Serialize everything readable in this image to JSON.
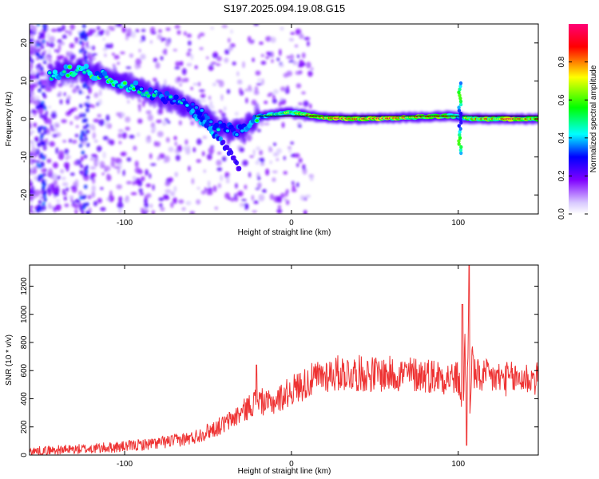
{
  "figure": {
    "title": "S197.2025.094.19.08.G15"
  },
  "chart_data": [
    {
      "type": "heatmap",
      "name": "spectrogram",
      "xlabel": "Height of straight line (km)",
      "ylabel": "Frequency (Hz)",
      "xlim": [
        -157,
        148
      ],
      "ylim": [
        -25,
        25
      ],
      "xticks": [
        -100,
        0,
        100
      ],
      "yticks": [
        -20,
        -10,
        0,
        10,
        20
      ],
      "grid": false,
      "colorbar": {
        "label": "Normalized spectral amplitude",
        "range": [
          0,
          1
        ],
        "ticks": [
          0.0,
          0.2,
          0.4,
          0.6,
          0.8
        ],
        "colormap": [
          "#ffffff",
          "#7f00ff",
          "#0000ff",
          "#00ffff",
          "#00ff00",
          "#ffff00",
          "#ff0000",
          "#ff00aa"
        ]
      },
      "ridge": [
        {
          "x": -145,
          "y": 11.5,
          "a": 0.55
        },
        {
          "x": -135,
          "y": 12.5,
          "a": 0.6
        },
        {
          "x": -125,
          "y": 13.0,
          "a": 0.65
        },
        {
          "x": -115,
          "y": 11.5,
          "a": 0.6
        },
        {
          "x": -105,
          "y": 10.0,
          "a": 0.6
        },
        {
          "x": -95,
          "y": 8.5,
          "a": 0.55
        },
        {
          "x": -85,
          "y": 7.0,
          "a": 0.5
        },
        {
          "x": -75,
          "y": 5.5,
          "a": 0.5
        },
        {
          "x": -65,
          "y": 4.0,
          "a": 0.45
        },
        {
          "x": -55,
          "y": 1.5,
          "a": 0.45
        },
        {
          "x": -45,
          "y": -1.5,
          "a": 0.5
        },
        {
          "x": -35,
          "y": -3.0,
          "a": 0.45
        },
        {
          "x": -28,
          "y": -3.0,
          "a": 0.5
        },
        {
          "x": -22,
          "y": 0.5,
          "a": 0.55
        },
        {
          "x": -10,
          "y": 1.2,
          "a": 0.6
        },
        {
          "x": 0,
          "y": 1.8,
          "a": 0.7
        },
        {
          "x": 10,
          "y": 1.0,
          "a": 0.8
        },
        {
          "x": 20,
          "y": 0.3,
          "a": 0.85
        },
        {
          "x": 40,
          "y": 0.0,
          "a": 0.95
        },
        {
          "x": 60,
          "y": 0.2,
          "a": 0.9
        },
        {
          "x": 80,
          "y": 0.6,
          "a": 0.9
        },
        {
          "x": 95,
          "y": 0.8,
          "a": 0.8
        },
        {
          "x": 100,
          "y": 0.5,
          "a": 0.6
        },
        {
          "x": 110,
          "y": 0.0,
          "a": 0.85
        },
        {
          "x": 130,
          "y": 0.0,
          "a": 0.9
        },
        {
          "x": 148,
          "y": 0.0,
          "a": 0.85
        }
      ],
      "branch": [
        {
          "x": -60,
          "y": 2.0,
          "a": 0.4
        },
        {
          "x": -50,
          "y": -2.0,
          "a": 0.4
        },
        {
          "x": -42,
          "y": -6.0,
          "a": 0.35
        },
        {
          "x": -35,
          "y": -10.0,
          "a": 0.3
        },
        {
          "x": -31,
          "y": -14.0,
          "a": 0.25
        }
      ],
      "spike": {
        "x": 101,
        "ylim": [
          -9,
          10
        ]
      }
    },
    {
      "type": "line",
      "name": "snr",
      "xlabel": "Height of straight line (km)",
      "ylabel": "SNR (10 * v/v)",
      "xlim": [
        -157,
        148
      ],
      "ylim": [
        0,
        1350
      ],
      "xticks": [
        -100,
        0,
        100
      ],
      "yticks": [
        0,
        200,
        400,
        600,
        800,
        1000,
        1200
      ],
      "color": "#ee3333",
      "grid": false,
      "series": [
        {
          "x": [
            -157,
            -140,
            -120,
            -100,
            -80,
            -60,
            -50,
            -40,
            -30,
            -25,
            -20,
            -15,
            -10,
            -5,
            0,
            10,
            20,
            30,
            40,
            50,
            60,
            70,
            80,
            90,
            100,
            103,
            104,
            105,
            106,
            107,
            108,
            110,
            120,
            130,
            140,
            148
          ],
          "y": [
            25,
            35,
            45,
            60,
            85,
            120,
            170,
            220,
            300,
            350,
            400,
            360,
            380,
            420,
            460,
            520,
            570,
            585,
            580,
            575,
            575,
            575,
            570,
            560,
            540,
            350,
            850,
            150,
            1000,
            250,
            700,
            560,
            550,
            540,
            545,
            540
          ]
        }
      ],
      "peaks": [
        {
          "x": -21,
          "y": 640
        },
        {
          "x": 102.5,
          "y": 1070
        },
        {
          "x": 105,
          "y": 70
        },
        {
          "x": 106.5,
          "y": 1350
        }
      ]
    }
  ]
}
